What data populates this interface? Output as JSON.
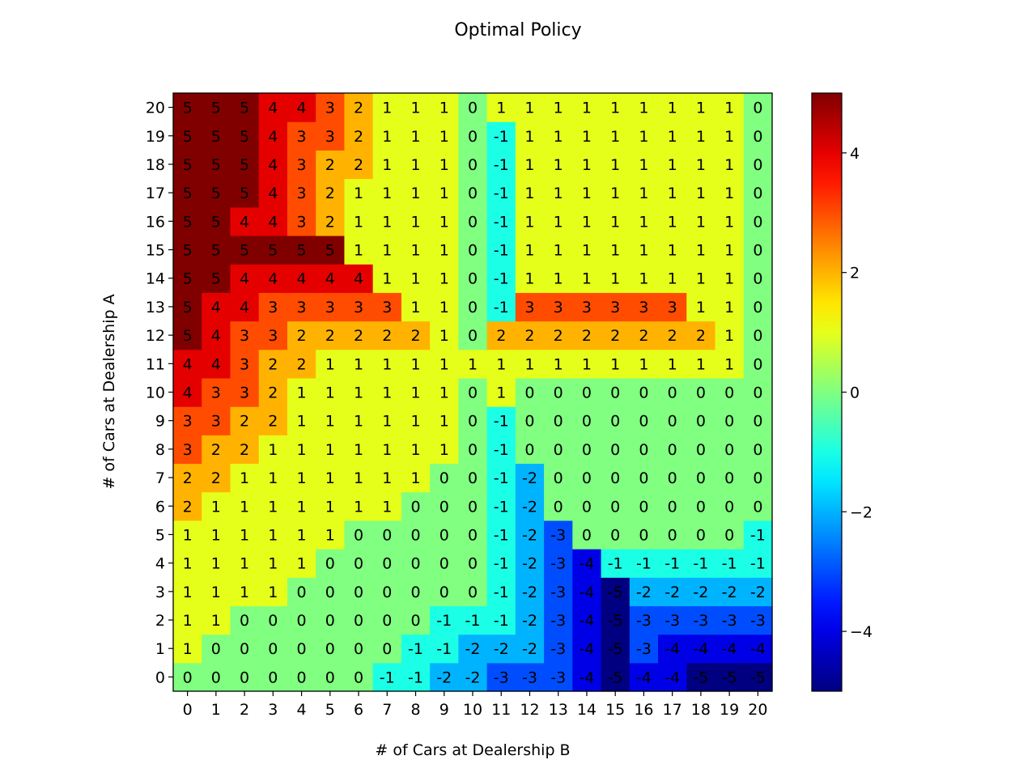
{
  "chart_data": {
    "type": "heatmap",
    "title": "Optimal Policy",
    "xlabel": "# of Cars at Dealership B",
    "ylabel": "# of Cars at Dealership A",
    "x_categories": [
      "0",
      "1",
      "2",
      "3",
      "4",
      "5",
      "6",
      "7",
      "8",
      "9",
      "10",
      "11",
      "12",
      "13",
      "14",
      "15",
      "16",
      "17",
      "18",
      "19",
      "20"
    ],
    "y_categories": [
      "0",
      "1",
      "2",
      "3",
      "4",
      "5",
      "6",
      "7",
      "8",
      "9",
      "10",
      "11",
      "12",
      "13",
      "14",
      "15",
      "16",
      "17",
      "18",
      "19",
      "20"
    ],
    "values": [
      [
        0,
        0,
        0,
        0,
        0,
        0,
        0,
        -1,
        -1,
        -2,
        -2,
        -3,
        -3,
        -3,
        -4,
        -5,
        -4,
        -4,
        -5,
        -5,
        -5
      ],
      [
        1,
        0,
        0,
        0,
        0,
        0,
        0,
        0,
        -1,
        -1,
        -2,
        -2,
        -2,
        -3,
        -4,
        -5,
        -3,
        -4,
        -4,
        -4,
        -4
      ],
      [
        1,
        1,
        0,
        0,
        0,
        0,
        0,
        0,
        0,
        -1,
        -1,
        -1,
        -2,
        -3,
        -4,
        -5,
        -3,
        -3,
        -3,
        -3,
        -3
      ],
      [
        1,
        1,
        1,
        1,
        0,
        0,
        0,
        0,
        0,
        0,
        0,
        -1,
        -2,
        -3,
        -4,
        -5,
        -2,
        -2,
        -2,
        -2,
        -2
      ],
      [
        1,
        1,
        1,
        1,
        1,
        0,
        0,
        0,
        0,
        0,
        0,
        -1,
        -2,
        -3,
        -4,
        -1,
        -1,
        -1,
        -1,
        -1,
        -1
      ],
      [
        1,
        1,
        1,
        1,
        1,
        1,
        0,
        0,
        0,
        0,
        0,
        -1,
        -2,
        -3,
        0,
        0,
        0,
        0,
        0,
        0,
        -1
      ],
      [
        2,
        1,
        1,
        1,
        1,
        1,
        1,
        1,
        0,
        0,
        0,
        -1,
        -2,
        0,
        0,
        0,
        0,
        0,
        0,
        0,
        0
      ],
      [
        2,
        2,
        1,
        1,
        1,
        1,
        1,
        1,
        1,
        0,
        0,
        -1,
        -2,
        0,
        0,
        0,
        0,
        0,
        0,
        0,
        0
      ],
      [
        3,
        2,
        2,
        1,
        1,
        1,
        1,
        1,
        1,
        1,
        0,
        -1,
        0,
        0,
        0,
        0,
        0,
        0,
        0,
        0,
        0
      ],
      [
        3,
        3,
        2,
        2,
        1,
        1,
        1,
        1,
        1,
        1,
        0,
        -1,
        0,
        0,
        0,
        0,
        0,
        0,
        0,
        0,
        0
      ],
      [
        4,
        3,
        3,
        2,
        1,
        1,
        1,
        1,
        1,
        1,
        0,
        1,
        0,
        0,
        0,
        0,
        0,
        0,
        0,
        0,
        0
      ],
      [
        4,
        4,
        3,
        2,
        2,
        1,
        1,
        1,
        1,
        1,
        1,
        1,
        1,
        1,
        1,
        1,
        1,
        1,
        1,
        1,
        0
      ],
      [
        5,
        4,
        3,
        3,
        2,
        2,
        2,
        2,
        2,
        1,
        0,
        2,
        2,
        2,
        2,
        2,
        2,
        2,
        2,
        1,
        0
      ],
      [
        5,
        4,
        4,
        3,
        3,
        3,
        3,
        3,
        1,
        1,
        0,
        -1,
        3,
        3,
        3,
        3,
        3,
        3,
        1,
        1,
        0
      ],
      [
        5,
        5,
        4,
        4,
        4,
        4,
        4,
        1,
        1,
        1,
        0,
        -1,
        1,
        1,
        1,
        1,
        1,
        1,
        1,
        1,
        0
      ],
      [
        5,
        5,
        5,
        5,
        5,
        5,
        1,
        1,
        1,
        1,
        0,
        -1,
        1,
        1,
        1,
        1,
        1,
        1,
        1,
        1,
        0
      ],
      [
        5,
        5,
        4,
        4,
        3,
        2,
        1,
        1,
        1,
        1,
        0,
        -1,
        1,
        1,
        1,
        1,
        1,
        1,
        1,
        1,
        0
      ],
      [
        5,
        5,
        5,
        4,
        3,
        2,
        1,
        1,
        1,
        1,
        0,
        -1,
        1,
        1,
        1,
        1,
        1,
        1,
        1,
        1,
        0
      ],
      [
        5,
        5,
        5,
        4,
        3,
        2,
        2,
        1,
        1,
        1,
        0,
        -1,
        1,
        1,
        1,
        1,
        1,
        1,
        1,
        1,
        0
      ],
      [
        5,
        5,
        5,
        4,
        3,
        3,
        2,
        1,
        1,
        1,
        0,
        -1,
        1,
        1,
        1,
        1,
        1,
        1,
        1,
        1,
        0
      ],
      [
        5,
        5,
        5,
        4,
        4,
        3,
        2,
        1,
        1,
        1,
        0,
        1,
        1,
        1,
        1,
        1,
        1,
        1,
        1,
        1,
        0
      ]
    ],
    "zlim": [
      -5,
      5
    ],
    "colormap": "jet",
    "colorbar": {
      "ticks": [
        -4,
        -2,
        0,
        2,
        4
      ],
      "tick_labels": [
        "−4",
        "−2",
        "0",
        "2",
        "4"
      ]
    },
    "grid": false,
    "legend": "none"
  }
}
